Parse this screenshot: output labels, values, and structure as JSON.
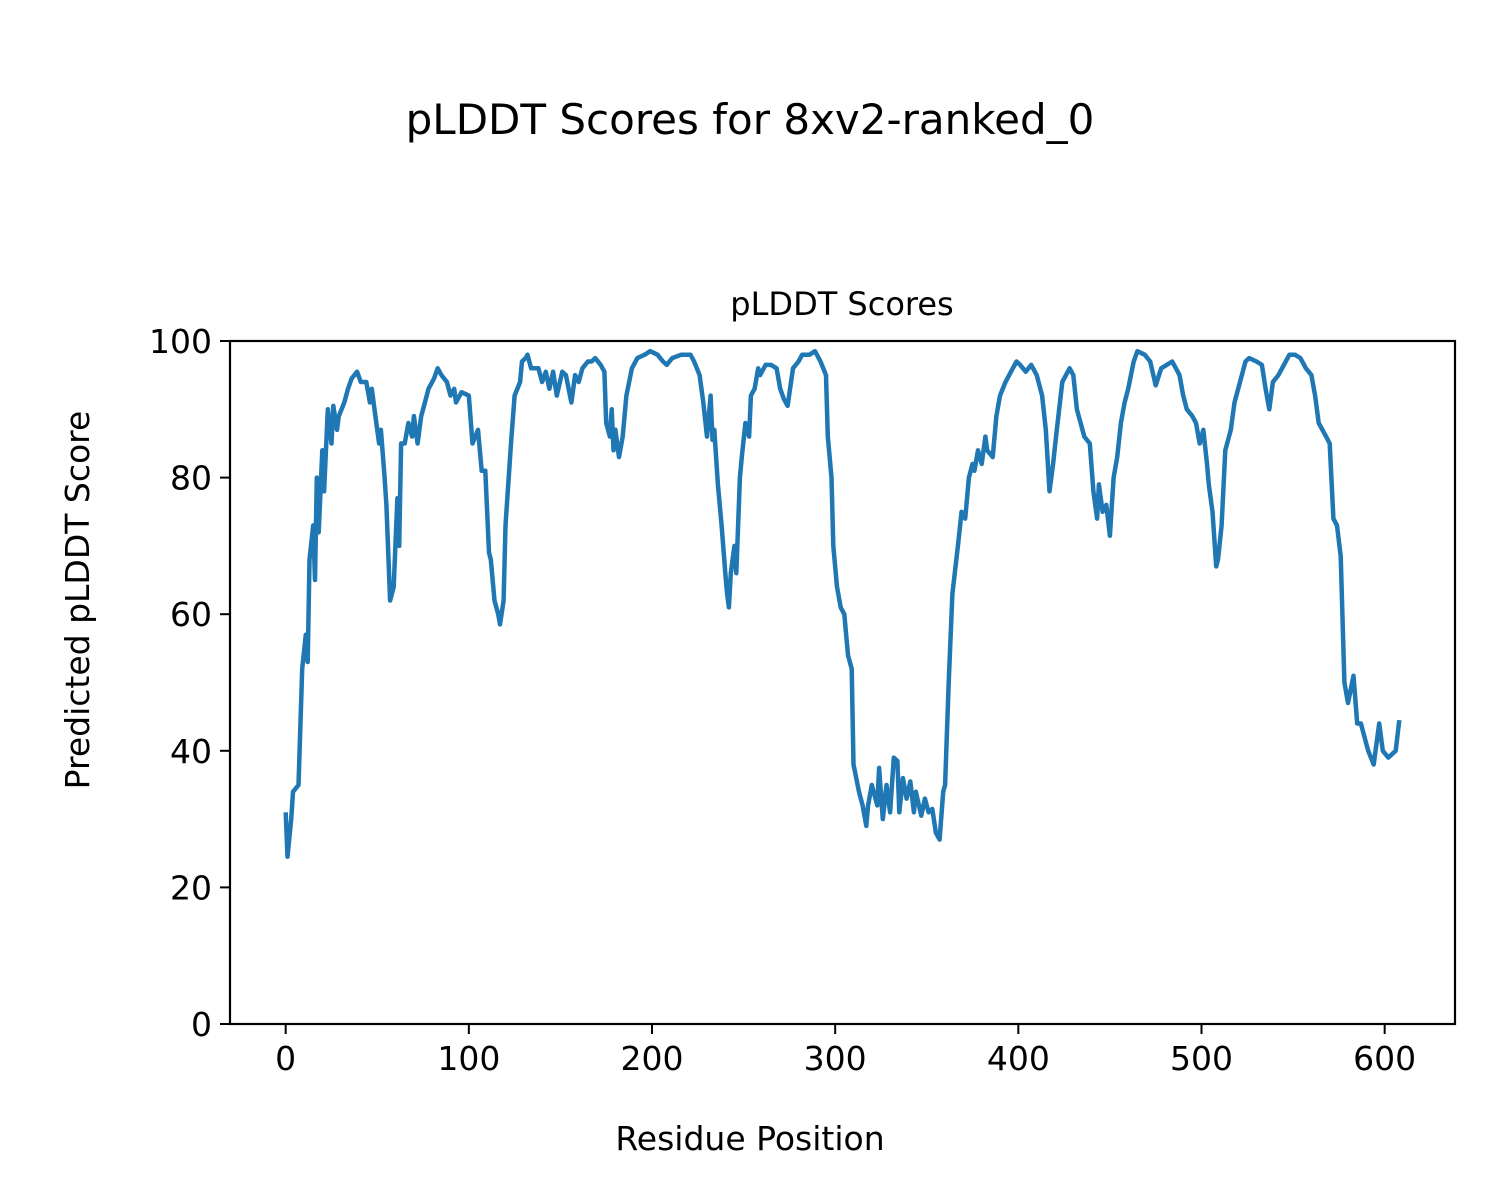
{
  "figure_title": "pLDDT Scores for 8xv2-ranked_0",
  "chart_data": {
    "type": "line",
    "title": "pLDDT Scores",
    "xlabel": "Residue Position",
    "ylabel": "Predicted pLDDT Score",
    "xlim": [
      -30.4,
      638.4
    ],
    "ylim": [
      0,
      100
    ],
    "xticks": [
      0,
      100,
      200,
      300,
      400,
      500,
      600
    ],
    "yticks": [
      0,
      20,
      40,
      60,
      80,
      100
    ],
    "grid": false,
    "color": "#1f77b4",
    "series": [
      {
        "name": "pLDDT",
        "points": [
          [
            0,
            31
          ],
          [
            1,
            24.5
          ],
          [
            3,
            30
          ],
          [
            4,
            34
          ],
          [
            7,
            35
          ],
          [
            9,
            52
          ],
          [
            11,
            57
          ],
          [
            12,
            53
          ],
          [
            13,
            68
          ],
          [
            15,
            73
          ],
          [
            16,
            65
          ],
          [
            17,
            80
          ],
          [
            18,
            72
          ],
          [
            20,
            84
          ],
          [
            21,
            78
          ],
          [
            23,
            90
          ],
          [
            25,
            85
          ],
          [
            26,
            90.5
          ],
          [
            28,
            87
          ],
          [
            29,
            89
          ],
          [
            32,
            91
          ],
          [
            34,
            93
          ],
          [
            36,
            94.5
          ],
          [
            39,
            95.5
          ],
          [
            41,
            94
          ],
          [
            44,
            94
          ],
          [
            46,
            91
          ],
          [
            47,
            93
          ],
          [
            49,
            89
          ],
          [
            51,
            85
          ],
          [
            52,
            87
          ],
          [
            54,
            80
          ],
          [
            55,
            76
          ],
          [
            57,
            62
          ],
          [
            59,
            64
          ],
          [
            61,
            77
          ],
          [
            62,
            70
          ],
          [
            63,
            85
          ],
          [
            65,
            85
          ],
          [
            67,
            88
          ],
          [
            69,
            86
          ],
          [
            70,
            89
          ],
          [
            72,
            85
          ],
          [
            74,
            89
          ],
          [
            76,
            91
          ],
          [
            78,
            93
          ],
          [
            81,
            94.5
          ],
          [
            83,
            96
          ],
          [
            85,
            95
          ],
          [
            88,
            94
          ],
          [
            90,
            92
          ],
          [
            92,
            93
          ],
          [
            93,
            91
          ],
          [
            96,
            92.5
          ],
          [
            100,
            92
          ],
          [
            102,
            85
          ],
          [
            105,
            87
          ],
          [
            107,
            81
          ],
          [
            109,
            81
          ],
          [
            111,
            69
          ],
          [
            112,
            68
          ],
          [
            114,
            62
          ],
          [
            116,
            60
          ],
          [
            117,
            58.5
          ],
          [
            119,
            62
          ],
          [
            120,
            73
          ],
          [
            123,
            85
          ],
          [
            125,
            92
          ],
          [
            128,
            94
          ],
          [
            129,
            97
          ],
          [
            131,
            97.5
          ],
          [
            132,
            98
          ],
          [
            134,
            96
          ],
          [
            136,
            96
          ],
          [
            138,
            96
          ],
          [
            140,
            94
          ],
          [
            142,
            95.5
          ],
          [
            144,
            93
          ],
          [
            146,
            95.5
          ],
          [
            148,
            92
          ],
          [
            151,
            95.5
          ],
          [
            153,
            95
          ],
          [
            156,
            91
          ],
          [
            158,
            95
          ],
          [
            160,
            94
          ],
          [
            162,
            96
          ],
          [
            165,
            97
          ],
          [
            167,
            97
          ],
          [
            169,
            97.5
          ],
          [
            172,
            96.5
          ],
          [
            174,
            95.5
          ],
          [
            175,
            88
          ],
          [
            177,
            86
          ],
          [
            178,
            90
          ],
          [
            179,
            84
          ],
          [
            180,
            87
          ],
          [
            182,
            83
          ],
          [
            184,
            86
          ],
          [
            186,
            92
          ],
          [
            189,
            96
          ],
          [
            192,
            97.5
          ],
          [
            196,
            98
          ],
          [
            199,
            98.5
          ],
          [
            203,
            98
          ],
          [
            206,
            97
          ],
          [
            208,
            96.5
          ],
          [
            211,
            97.5
          ],
          [
            216,
            98
          ],
          [
            221,
            98
          ],
          [
            223,
            97
          ],
          [
            226,
            95
          ],
          [
            228,
            91
          ],
          [
            230,
            86
          ],
          [
            232,
            92
          ],
          [
            233,
            85.5
          ],
          [
            234,
            87
          ],
          [
            236,
            79
          ],
          [
            238,
            73
          ],
          [
            240,
            66
          ],
          [
            241,
            63
          ],
          [
            242,
            61
          ],
          [
            243,
            66
          ],
          [
            245,
            70
          ],
          [
            246,
            66
          ],
          [
            248,
            80
          ],
          [
            249,
            83
          ],
          [
            251,
            88
          ],
          [
            253,
            86
          ],
          [
            254,
            92
          ],
          [
            256,
            93
          ],
          [
            258,
            96
          ],
          [
            259,
            95
          ],
          [
            262,
            96.5
          ],
          [
            265,
            96.5
          ],
          [
            268,
            96
          ],
          [
            270,
            93
          ],
          [
            272,
            91.5
          ],
          [
            274,
            90.5
          ],
          [
            277,
            96
          ],
          [
            280,
            97
          ],
          [
            282,
            98
          ],
          [
            286,
            98
          ],
          [
            289,
            98.5
          ],
          [
            292,
            97
          ],
          [
            295,
            95
          ],
          [
            296,
            86
          ],
          [
            298,
            80
          ],
          [
            299,
            70
          ],
          [
            301,
            64
          ],
          [
            303,
            61
          ],
          [
            305,
            60
          ],
          [
            307,
            54
          ],
          [
            309,
            52
          ],
          [
            310,
            38
          ],
          [
            313,
            34
          ],
          [
            315,
            32
          ],
          [
            317,
            29
          ],
          [
            318,
            32
          ],
          [
            320,
            35
          ],
          [
            323,
            32
          ],
          [
            324,
            37.5
          ],
          [
            326,
            30
          ],
          [
            328,
            35
          ],
          [
            330,
            31
          ],
          [
            332,
            39
          ],
          [
            334,
            38.5
          ],
          [
            335,
            31
          ],
          [
            337,
            36
          ],
          [
            339,
            33
          ],
          [
            341,
            35.5
          ],
          [
            343,
            31
          ],
          [
            344,
            34
          ],
          [
            347,
            30.5
          ],
          [
            349,
            33
          ],
          [
            351,
            31
          ],
          [
            353,
            31.5
          ],
          [
            355,
            28
          ],
          [
            357,
            27
          ],
          [
            359,
            34
          ],
          [
            360,
            35
          ],
          [
            362,
            50
          ],
          [
            364,
            63
          ],
          [
            367,
            70
          ],
          [
            369,
            75
          ],
          [
            371,
            74
          ],
          [
            373,
            80
          ],
          [
            375,
            82
          ],
          [
            376,
            81
          ],
          [
            378,
            84
          ],
          [
            380,
            82
          ],
          [
            382,
            86
          ],
          [
            383,
            84
          ],
          [
            386,
            83
          ],
          [
            388,
            89
          ],
          [
            390,
            92
          ],
          [
            393,
            94
          ],
          [
            397,
            96
          ],
          [
            399,
            97
          ],
          [
            401,
            96.5
          ],
          [
            404,
            95.5
          ],
          [
            407,
            96.5
          ],
          [
            410,
            95
          ],
          [
            413,
            92
          ],
          [
            415,
            87
          ],
          [
            417,
            78
          ],
          [
            419,
            82
          ],
          [
            421,
            87
          ],
          [
            424,
            94
          ],
          [
            426,
            95
          ],
          [
            428,
            96
          ],
          [
            430,
            95
          ],
          [
            432,
            90
          ],
          [
            434,
            88
          ],
          [
            436,
            86
          ],
          [
            439,
            85
          ],
          [
            441,
            78
          ],
          [
            443,
            74
          ],
          [
            444,
            79
          ],
          [
            446,
            75
          ],
          [
            448,
            76
          ],
          [
            450,
            71.5
          ],
          [
            452,
            80
          ],
          [
            454,
            83
          ],
          [
            456,
            88
          ],
          [
            458,
            91
          ],
          [
            460,
            93
          ],
          [
            463,
            97
          ],
          [
            465,
            98.5
          ],
          [
            469,
            98
          ],
          [
            472,
            97
          ],
          [
            475,
            93.5
          ],
          [
            478,
            96
          ],
          [
            481,
            96.5
          ],
          [
            484,
            97
          ],
          [
            486,
            96
          ],
          [
            488,
            95
          ],
          [
            490,
            92
          ],
          [
            492,
            90
          ],
          [
            495,
            89
          ],
          [
            497,
            88
          ],
          [
            499,
            85
          ],
          [
            501,
            87
          ],
          [
            503,
            82
          ],
          [
            504,
            79
          ],
          [
            506,
            75
          ],
          [
            508,
            67
          ],
          [
            509,
            68
          ],
          [
            511,
            73
          ],
          [
            513,
            84
          ],
          [
            516,
            87
          ],
          [
            518,
            91
          ],
          [
            521,
            94
          ],
          [
            524,
            97
          ],
          [
            526,
            97.5
          ],
          [
            530,
            97
          ],
          [
            533,
            96.5
          ],
          [
            535,
            93
          ],
          [
            537,
            90
          ],
          [
            539,
            94
          ],
          [
            542,
            95
          ],
          [
            545,
            96.5
          ],
          [
            548,
            98
          ],
          [
            551,
            98
          ],
          [
            554,
            97.5
          ],
          [
            557,
            96
          ],
          [
            560,
            95
          ],
          [
            562,
            92
          ],
          [
            564,
            88
          ],
          [
            566,
            87
          ],
          [
            568,
            86
          ],
          [
            570,
            85
          ],
          [
            572,
            74
          ],
          [
            574,
            73
          ],
          [
            576,
            68.5
          ],
          [
            578,
            50
          ],
          [
            580,
            47
          ],
          [
            583,
            51
          ],
          [
            585,
            44
          ],
          [
            587,
            44
          ],
          [
            589,
            42
          ],
          [
            591,
            40
          ],
          [
            594,
            38
          ],
          [
            597,
            44
          ],
          [
            599,
            40
          ],
          [
            602,
            39
          ],
          [
            606,
            40
          ],
          [
            608,
            44.5
          ]
        ]
      }
    ]
  }
}
